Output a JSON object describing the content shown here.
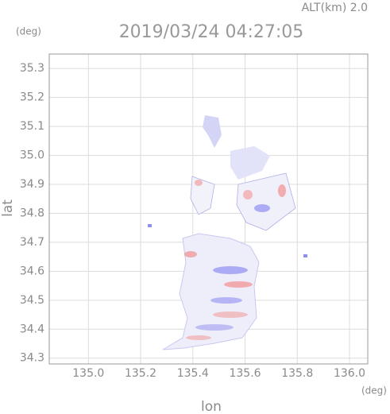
{
  "chart_data": {
    "type": "map",
    "title": "2019/03/24 04:27:05",
    "annotation": "ALT(km) 2.0",
    "y_unit": "(deg)",
    "x_unit": "(deg)",
    "x_label": "lon",
    "y_label": "lat",
    "xlim": [
      134.85,
      136.07
    ],
    "xticks": [
      {
        "value": 135,
        "label": "135.0"
      },
      135.2,
      135.4,
      135.6,
      135.8,
      {
        "value": 136,
        "label": "136.0"
      }
    ],
    "ylim": [
      34.28,
      35.35
    ],
    "yticks": [
      34.3,
      34.4,
      34.5,
      34.6,
      34.7,
      34.8,
      34.9,
      {
        "value": 35,
        "label": "35.0"
      },
      35.1,
      35.2,
      35.3
    ],
    "grid": true
  }
}
